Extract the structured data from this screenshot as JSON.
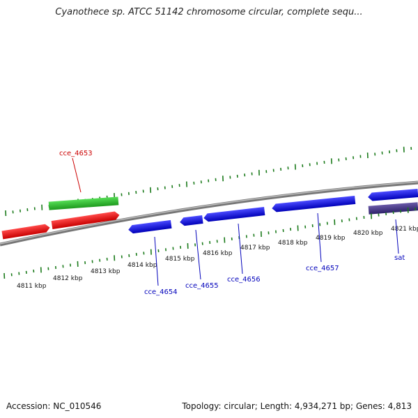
{
  "title": "Cyanothece sp. ATCC 51142 chromosome circular, complete sequ...",
  "footer": {
    "accession": "Accession: NC_010546",
    "summary": "Topology: circular; Length: 4,934,271 bp; Genes: 4,813"
  },
  "colors": {
    "backbone": "#8a8a8a",
    "tick": "#1a7a1a",
    "forward_label": "#cc0000",
    "reverse_label": "#0000bb"
  },
  "scale_labels": [
    "4811 kbp",
    "4812 kbp",
    "4813 kbp",
    "4814 kbp",
    "4815 kbp",
    "4816 kbp",
    "4817 kbp",
    "4818 kbp",
    "4819 kbp",
    "4820 kbp",
    "4821 kbp"
  ],
  "gene_labels": [
    {
      "text": "cce_4653",
      "color": "#cc0000"
    },
    {
      "text": "cce_4654",
      "color": "#0000bb"
    },
    {
      "text": "cce_4655",
      "color": "#0000bb"
    },
    {
      "text": "cce_4656",
      "color": "#0000bb"
    },
    {
      "text": "cce_4657",
      "color": "#0000bb"
    },
    {
      "text": "sat",
      "color": "#0000bb"
    }
  ]
}
